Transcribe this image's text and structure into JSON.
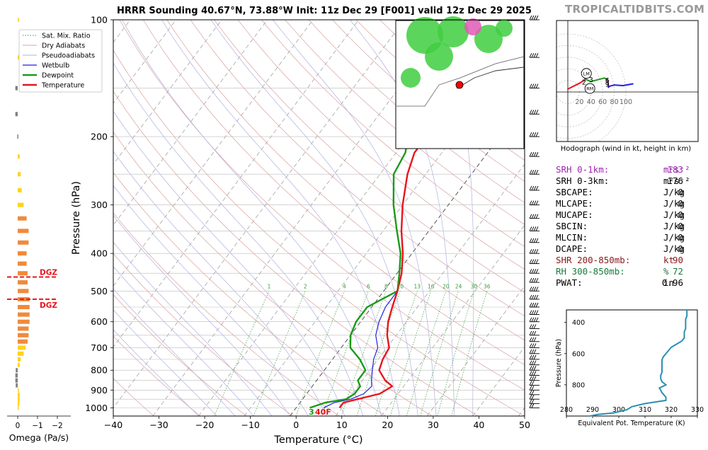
{
  "header": {
    "title": "HRRR Sounding 40.67°N, 73.88°W Init: 11z Dec 29 [F001] valid 12z Dec 29 2025",
    "site": "TROPICALTIDBITS.COM"
  },
  "skewt": {
    "xlabel": "Temperature (°C)",
    "ylabel": "Pressure (hPa)",
    "x_ticks": [
      "−40",
      "−30",
      "−20",
      "−10",
      "0",
      "10",
      "20",
      "30",
      "40",
      "50"
    ],
    "y_ticks": [
      "100",
      "200",
      "300",
      "400",
      "500",
      "600",
      "700",
      "800",
      "900",
      "1000"
    ],
    "legend": [
      "Sat. Mix. Ratio",
      "Dry Adiabats",
      "Pseudoadiabats",
      "Wetbulb",
      "Dewpoint",
      "Temperature"
    ],
    "mix_ratio_labels": [
      "1",
      "2",
      "4",
      "6",
      "8",
      "10",
      "13",
      "16",
      "20",
      "24",
      "30",
      "36"
    ],
    "surface_dewpoint_label": "3",
    "surface_temp_label": "40F",
    "dgz_label": "DGZ",
    "colors": {
      "temperature": "#e8141c",
      "dewpoint": "#1a9a1a",
      "wetbulb": "#2222dd",
      "dry_adiabat": "#d9a0a0",
      "pseudoadiabat": "#b0b0e0",
      "mixing_ratio": "#3a9a3a"
    }
  },
  "omega": {
    "xlabel": "Omega (Pa/s)",
    "x_ticks": [
      "0",
      "−1",
      "−2"
    ]
  },
  "hodograph": {
    "caption": "Hodograph (wind in kt, height in km)",
    "ring_labels": [
      "20",
      "40",
      "60",
      "80",
      "100"
    ],
    "height_labels": [
      "1",
      "2",
      "3",
      "6",
      "9"
    ],
    "lm_label": "LM",
    "rm_label": "RM"
  },
  "parameters": [
    {
      "label": "SRH 0-1km:",
      "value": "183",
      "unit": "m²s⁻²",
      "color": "#9c27b0"
    },
    {
      "label": "SRH 0-3km:",
      "value": "176",
      "unit": "m²s⁻²",
      "color": "#000000"
    },
    {
      "label": "SBCAPE:",
      "value": "0",
      "unit": "J/kg",
      "color": "#000000"
    },
    {
      "label": "MLCAPE:",
      "value": "0",
      "unit": "J/kg",
      "color": "#000000"
    },
    {
      "label": "MUCAPE:",
      "value": "0",
      "unit": "J/kg",
      "color": "#000000"
    },
    {
      "label": "SBCIN:",
      "value": "0",
      "unit": "J/kg",
      "color": "#000000"
    },
    {
      "label": "MLCIN:",
      "value": "0",
      "unit": "J/kg",
      "color": "#000000"
    },
    {
      "label": "DCAPE:",
      "value": "0",
      "unit": "J/kg",
      "color": "#000000"
    },
    {
      "label": "SHR 200-850mb:",
      "value": "90",
      "unit": "kt",
      "color": "#8b1a1a"
    },
    {
      "label": "RH 300-850mb:",
      "value": "72",
      "unit": "%",
      "color": "#1a7a3a"
    },
    {
      "label": "PWAT:",
      "value": "0.96",
      "unit": "in",
      "color": "#000000"
    }
  ],
  "theta_e": {
    "xlabel": "Equivalent Pot. Temperature (K)",
    "ylabel": "Pressure (hPa)",
    "x_ticks": [
      "280",
      "290",
      "300",
      "310",
      "320",
      "330"
    ],
    "y_ticks": [
      "400",
      "600",
      "800"
    ]
  },
  "chart_data": [
    {
      "type": "line",
      "title": "HRRR Sounding 40.67°N, 73.88°W Init: 11z Dec 29 [F001] valid 12z Dec 29 2025",
      "xlabel": "Temperature (°C)",
      "ylabel": "Pressure (hPa)",
      "xlim": [
        -40,
        50
      ],
      "ylim": [
        1050,
        100
      ],
      "y_scale": "log",
      "series": [
        {
          "name": "Temperature",
          "pressure": [
            1000,
            970,
            950,
            920,
            880,
            850,
            800,
            750,
            700,
            650,
            600,
            550,
            500,
            450,
            400,
            350,
            300,
            250,
            220,
            200,
            170,
            150,
            120,
            100
          ],
          "values": [
            9.5,
            9.5,
            12,
            16,
            17.5,
            15,
            12,
            11,
            10.5,
            8,
            6,
            4.5,
            3,
            1,
            -2,
            -6,
            -10,
            -14,
            -16,
            -16,
            -12,
            -7,
            -6,
            -4
          ]
        },
        {
          "name": "Dewpoint",
          "pressure": [
            1000,
            970,
            950,
            920,
            880,
            850,
            800,
            750,
            700,
            650,
            600,
            550,
            500,
            450,
            400,
            350,
            300,
            250,
            220,
            200,
            170,
            150,
            120,
            100
          ],
          "values": [
            3,
            5.5,
            9.5,
            10.5,
            10.5,
            9,
            9,
            6,
            2,
            0,
            -1,
            -1,
            3,
            0.5,
            -2.5,
            -7,
            -12,
            -17,
            -18,
            -20,
            -24,
            -27,
            -28,
            -27
          ]
        },
        {
          "name": "Wetbulb",
          "pressure": [
            1000,
            970,
            950,
            920,
            880,
            850,
            800,
            750,
            700,
            650,
            600,
            550,
            500
          ],
          "values": [
            6,
            7.5,
            10.5,
            12.5,
            13,
            12,
            10.5,
            9,
            8,
            5.5,
            4,
            3,
            3
          ]
        }
      ],
      "mixing_ratio_g_per_kg": [
        1,
        2,
        4,
        6,
        8,
        10,
        13,
        16,
        20,
        24,
        30,
        36
      ],
      "surface": {
        "dewpoint": "3",
        "temperature": "40F"
      },
      "grid": true
    },
    {
      "type": "bar",
      "title": "",
      "xlabel": "Omega (Pa/s)",
      "xlim": [
        0.2,
        -2.5
      ],
      "pressure": [
        1000,
        975,
        950,
        925,
        900,
        875,
        850,
        825,
        800,
        775,
        750,
        725,
        700,
        675,
        650,
        625,
        600,
        575,
        550,
        525,
        500,
        475,
        450,
        425,
        400,
        375,
        350,
        325,
        300,
        275,
        250,
        225,
        200,
        175,
        150,
        125,
        100
      ],
      "values": [
        0.0,
        -0.08,
        -0.1,
        -0.1,
        -0.05,
        0.1,
        0.12,
        0.12,
        0.1,
        -0.1,
        -0.15,
        -0.3,
        -0.4,
        -0.5,
        -0.55,
        -0.55,
        -0.6,
        -0.6,
        -0.6,
        -0.6,
        -0.55,
        -0.5,
        -0.5,
        -0.45,
        -0.45,
        -0.55,
        -0.55,
        -0.45,
        -0.3,
        -0.2,
        -0.15,
        -0.1,
        0.02,
        0.12,
        0.12,
        -0.02,
        -0.02
      ],
      "dgz_pressure": [
        460,
        525
      ]
    },
    {
      "type": "line",
      "title": "",
      "caption": "Hodograph (wind in kt, height in km)",
      "u_kt": [
        0,
        20,
        28,
        30,
        40,
        55,
        63,
        68,
        70,
        72,
        80,
        95,
        112
      ],
      "v_kt": [
        5,
        15,
        20,
        22,
        18,
        22,
        24,
        22,
        8,
        10,
        12,
        11,
        14
      ],
      "rings_kt": [
        20,
        40,
        60,
        80,
        100
      ],
      "LM": [
        32,
        32
      ],
      "RM": [
        38,
        6
      ]
    },
    {
      "type": "line",
      "title": "",
      "xlabel": "Equivalent Pot. Temperature (K)",
      "ylabel": "Pressure (hPa)",
      "xlim": [
        280,
        330
      ],
      "pressure": [
        1000,
        990,
        980,
        960,
        940,
        920,
        900,
        880,
        850,
        820,
        800,
        780,
        760,
        740,
        720,
        700,
        680,
        660,
        640,
        620,
        600,
        580,
        560,
        540,
        520,
        500,
        480,
        460,
        440,
        420,
        400,
        380,
        360,
        340,
        320
      ],
      "values": [
        289,
        292,
        298,
        303,
        305,
        310,
        318,
        318,
        316.5,
        315.5,
        318,
        316.5,
        316,
        316,
        316.5,
        316.5,
        316.5,
        316.5,
        316.5,
        317,
        318,
        319,
        320,
        322,
        324,
        325,
        325,
        325,
        325.5,
        325.5,
        325.5,
        325.5,
        326,
        326,
        326
      ]
    }
  ]
}
